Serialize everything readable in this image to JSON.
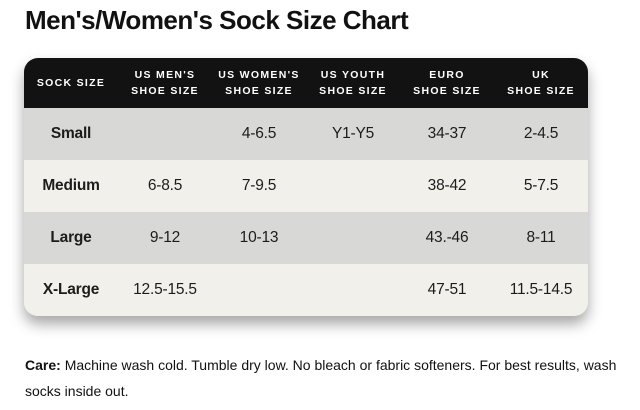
{
  "colors": {
    "title_text": "#111111",
    "header_bg": "#121212",
    "header_text": "#ffffff",
    "row_gray": "#d8d8d6",
    "row_cream": "#f2f0ea",
    "text": "#1c1c1c"
  },
  "page": {
    "title": "Men's/Women's Sock Size Chart"
  },
  "table": {
    "headers": [
      {
        "line1": "SOCK SIZE",
        "line2": ""
      },
      {
        "line1": "US MEN'S",
        "line2": "SHOE SIZE"
      },
      {
        "line1": "US WOMEN'S",
        "line2": "SHOE SIZE"
      },
      {
        "line1": "US YOUTH",
        "line2": "SHOE SIZE"
      },
      {
        "line1": "EURO",
        "line2": "SHOE SIZE"
      },
      {
        "line1": "UK",
        "line2": "SHOE SIZE"
      }
    ]
  },
  "chart_data": {
    "type": "table",
    "title": "Men's/Women's Sock Size Chart",
    "columns": [
      "SOCK SIZE",
      "US MEN'S SHOE SIZE",
      "US WOMEN'S SHOE SIZE",
      "US YOUTH SHOE SIZE",
      "EURO SHOE SIZE",
      "UK SHOE SIZE"
    ],
    "rows": [
      {
        "size": "Small",
        "us_mens": "",
        "us_womens": "4-6.5",
        "us_youth": "Y1-Y5",
        "euro": "34-37",
        "uk": "2-4.5"
      },
      {
        "size": "Medium",
        "us_mens": "6-8.5",
        "us_womens": "7-9.5",
        "us_youth": "",
        "euro": "38-42",
        "uk": "5-7.5"
      },
      {
        "size": "Large",
        "us_mens": "9-12",
        "us_womens": "10-13",
        "us_youth": "",
        "euro": "43.-46",
        "uk": "8-11"
      },
      {
        "size": "X-Large",
        "us_mens": "12.5-15.5",
        "us_womens": "",
        "us_youth": "",
        "euro": "47-51",
        "uk": "11.5-14.5"
      }
    ]
  },
  "care": {
    "label": "Care:",
    "text": "Machine wash cold. Tumble dry low. No bleach or fabric softeners. For best results, wash socks inside out."
  }
}
